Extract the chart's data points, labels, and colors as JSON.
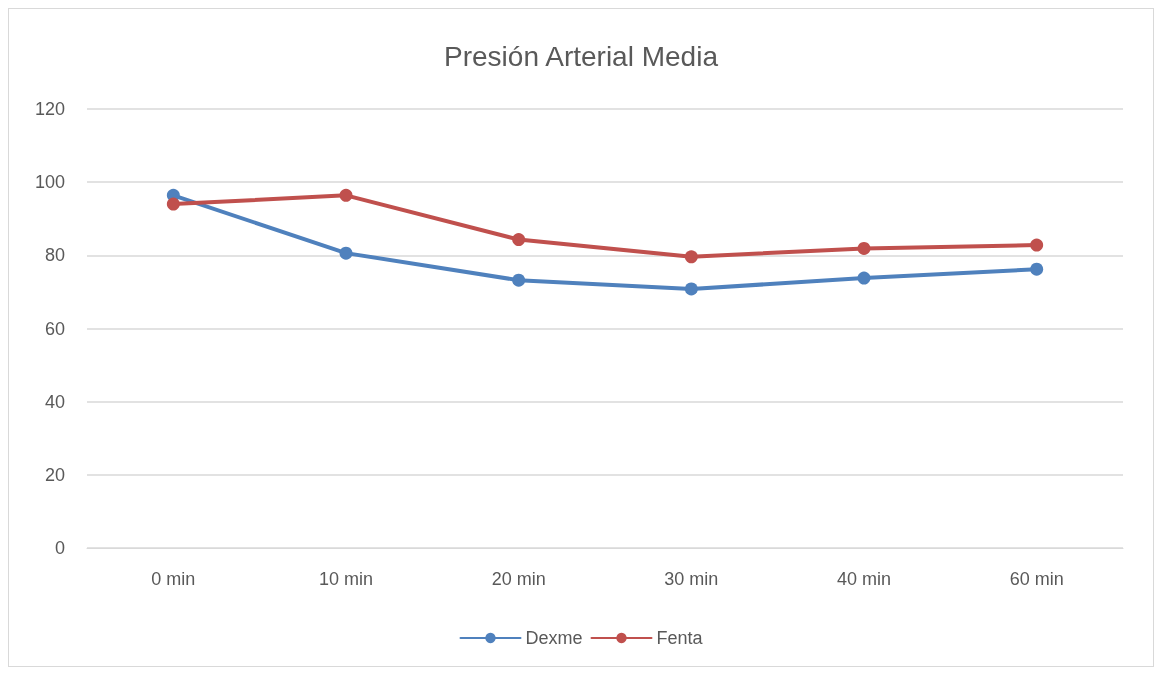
{
  "chart_data": {
    "type": "line",
    "title": "Presión Arterial Media",
    "categories": [
      "0 min",
      "10 min",
      "20 min",
      "30 min",
      "40 min",
      "60 min"
    ],
    "series": [
      {
        "name": "Dexme",
        "color": "#4f81bd",
        "values": [
          96.4,
          80.6,
          73.2,
          70.8,
          73.8,
          76.2
        ]
      },
      {
        "name": "Fenta",
        "color": "#c0504d",
        "values": [
          94.0,
          96.4,
          84.3,
          79.6,
          81.9,
          82.8
        ]
      }
    ],
    "ylim": [
      0,
      120
    ],
    "yticks": [
      0,
      20,
      40,
      60,
      80,
      100,
      120
    ],
    "grid": "y",
    "legend": "bottom",
    "marker": "circle",
    "line_style": "solid"
  }
}
